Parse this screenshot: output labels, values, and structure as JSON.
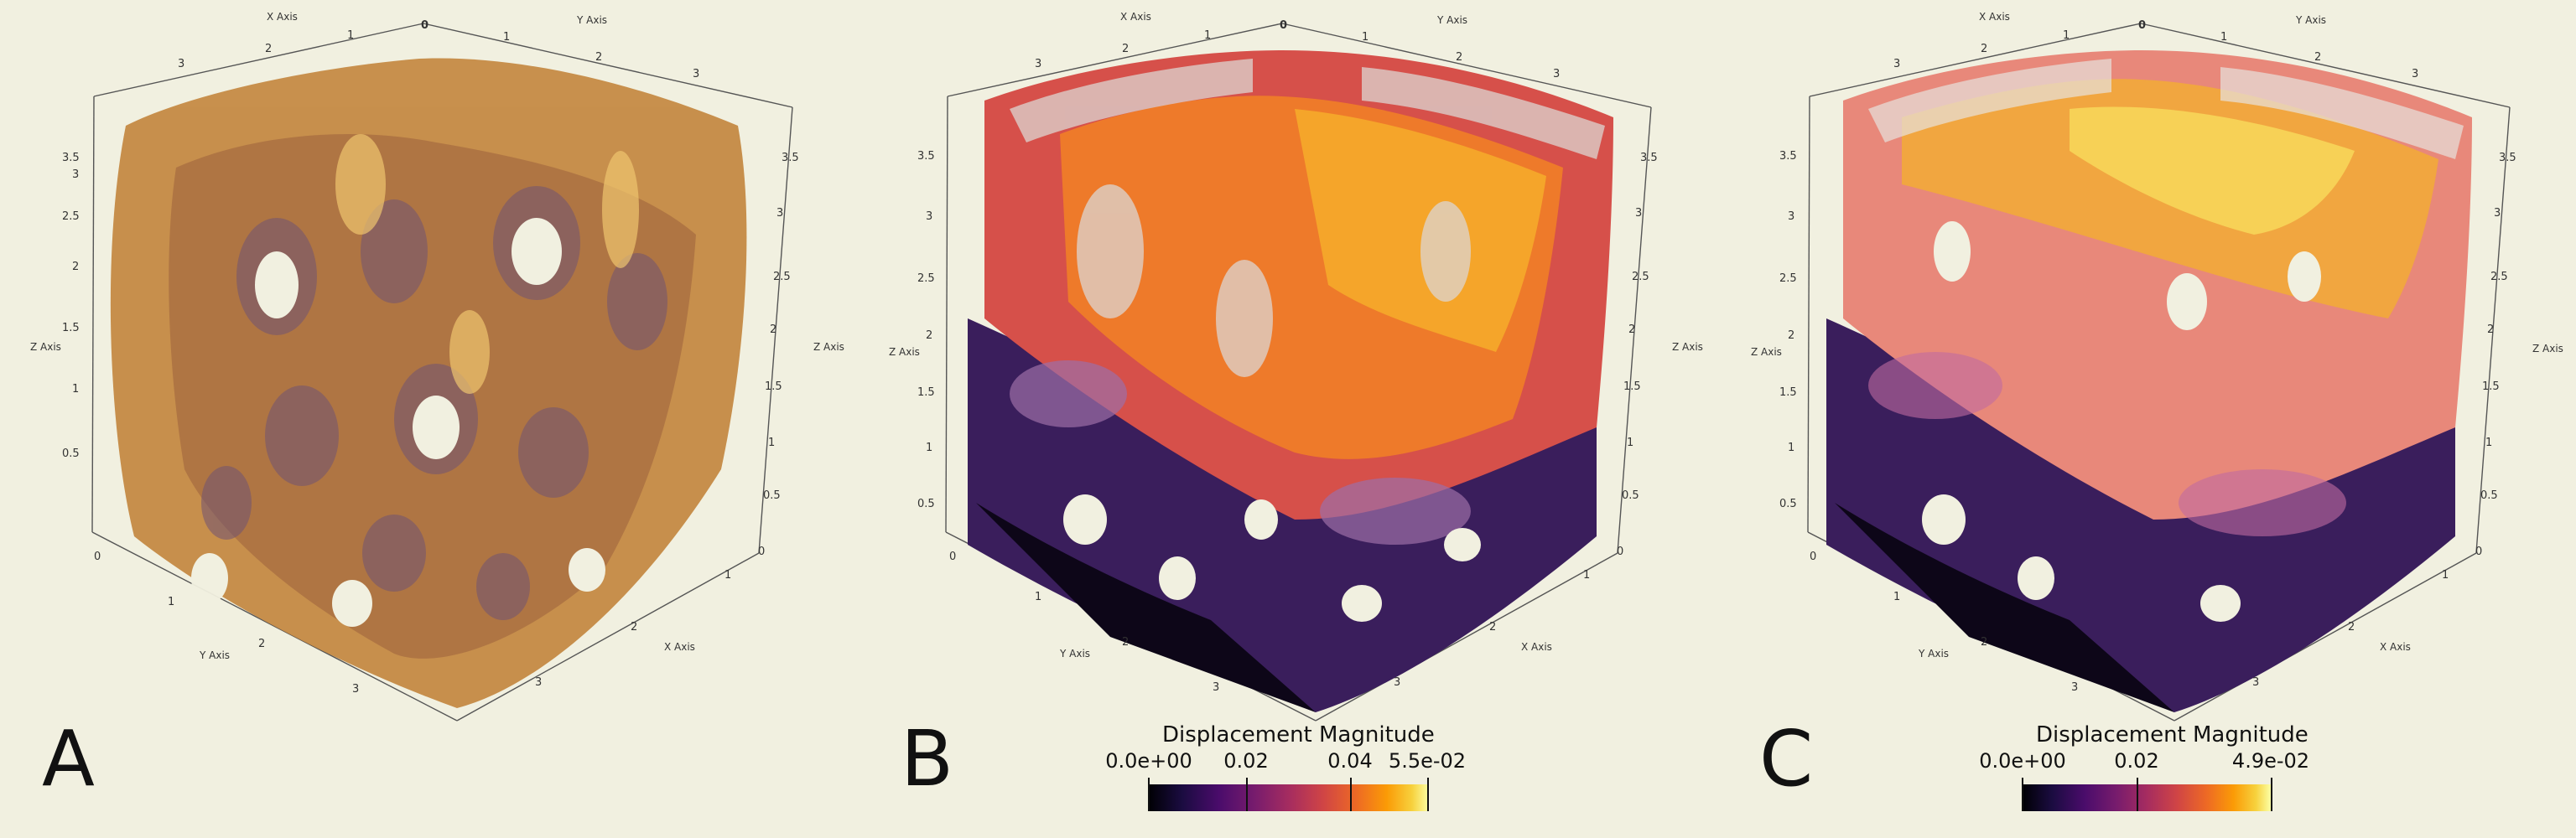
{
  "axes": {
    "x_title": "X Axis",
    "y_title": "Y Axis",
    "z_title": "Z Axis",
    "top_origin": "0",
    "top_x_ticks": [
      "1",
      "2",
      "3"
    ],
    "top_y_ticks": [
      "1",
      "2",
      "3"
    ],
    "z_ticks_left": [
      "0.5",
      "1",
      "1.5",
      "2",
      "2.5",
      "3",
      "3.5"
    ],
    "z_ticks_right": [
      "0.5",
      "1",
      "1.5",
      "2",
      "2.5",
      "3",
      "3.5"
    ],
    "bottom_y_ticks": [
      "1",
      "2",
      "3"
    ],
    "bottom_x_ticks": [
      "1",
      "2",
      "3"
    ],
    "corner_zeros": [
      "0",
      "0"
    ]
  },
  "panels": [
    {
      "letter": "A",
      "colorbar": null
    },
    {
      "letter": "B",
      "colorbar": {
        "title": "Displacement Magnitude",
        "min_label": "0.0e+00",
        "mid_labels": [
          "0.02",
          "0.04"
        ],
        "max_label": "5.5e-02"
      }
    },
    {
      "letter": "C",
      "colorbar": {
        "title": "Displacement Magnitude",
        "min_label": "0.0e+00",
        "mid_labels": [
          "0.02"
        ],
        "max_label": "4.9e-02"
      }
    }
  ],
  "colors": {
    "background": "#f1f0e0",
    "volume_fill": "#b97a3a",
    "volume_dark": "#6b4a6a",
    "mesh_low": "#1b0c41",
    "mesh_mid": "#cf4446",
    "mesh_high": "#f7c13d"
  }
}
